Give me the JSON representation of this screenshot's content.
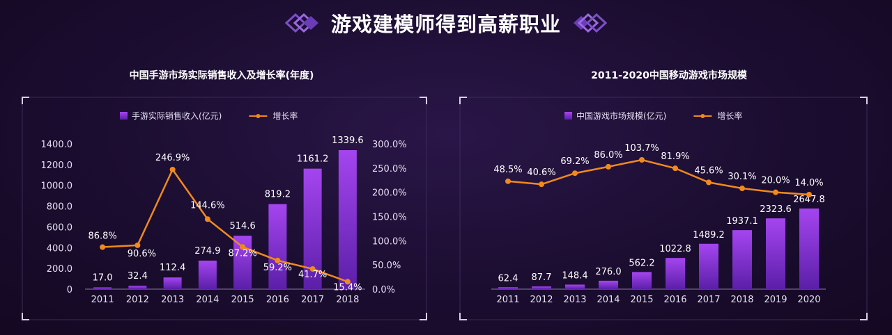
{
  "header": {
    "title": "游戏建模师得到高薪职业"
  },
  "colors": {
    "bar_top": "#a545f0",
    "bar_bottom": "#5b1fa8",
    "line": "#f08a1e",
    "axis_text": "#e6dff2"
  },
  "chart_data": [
    {
      "type": "bar",
      "title": "中国手游市场实际销售收入及增长率(年度)",
      "categories": [
        "2011",
        "2012",
        "2013",
        "2014",
        "2015",
        "2016",
        "2017",
        "2018"
      ],
      "series": [
        {
          "name": "手游实际销售收入(亿元)",
          "type": "bar",
          "axis": "left",
          "values": [
            17.0,
            32.4,
            112.4,
            274.9,
            514.6,
            819.2,
            1161.2,
            1339.6
          ],
          "labels": [
            "17.0",
            "32.4",
            "112.4",
            "274.9",
            "514.6",
            "819.2",
            "1161.2",
            "1339.6"
          ]
        },
        {
          "name": "增长率",
          "type": "line",
          "axis": "right",
          "values": [
            86.8,
            90.6,
            246.9,
            144.6,
            87.2,
            59.2,
            41.7,
            15.4
          ],
          "labels": [
            "86.8%",
            "90.6%",
            "246.9%",
            "144.6%",
            "87.2%",
            "59.2%",
            "41.7%",
            "15.4%"
          ]
        }
      ],
      "yleft_ticks": [
        "0",
        "200.0",
        "400.0",
        "600.0",
        "800.0",
        "1000.0",
        "1200.0",
        "1400.0"
      ],
      "yleft_lim": [
        0,
        1400
      ],
      "yright_ticks": [
        "0.0%",
        "50.0%",
        "100.0%",
        "150.0%",
        "200.0%",
        "250.0%",
        "300.0%"
      ],
      "yright_lim": [
        0,
        300
      ],
      "legend_position": "top"
    },
    {
      "type": "bar",
      "title": "2011-2020中国移动游戏市场规模",
      "categories": [
        "2011",
        "2012",
        "2013",
        "2014",
        "2015",
        "2016",
        "2017",
        "2018",
        "2019",
        "2020"
      ],
      "series": [
        {
          "name": "中国游戏市场规模(亿元)",
          "type": "bar",
          "values": [
            62.4,
            87.7,
            148.4,
            276.0,
            562.2,
            1022.8,
            1489.2,
            1937.1,
            2323.6,
            2647.8
          ],
          "labels": [
            "62.4",
            "87.7",
            "148.4",
            "276.0",
            "562.2",
            "1022.8",
            "1489.2",
            "1937.1",
            "2323.6",
            "2647.8"
          ]
        },
        {
          "name": "增长率",
          "type": "line",
          "values": [
            48.5,
            40.6,
            69.2,
            86.0,
            103.7,
            81.9,
            45.6,
            30.1,
            20.0,
            14.0
          ],
          "labels": [
            "48.5%",
            "40.6%",
            "69.2%",
            "86.0%",
            "103.7%",
            "81.9%",
            "45.6%",
            "30.1%",
            "20.0%",
            "14.0%"
          ]
        }
      ],
      "legend_position": "top"
    }
  ]
}
